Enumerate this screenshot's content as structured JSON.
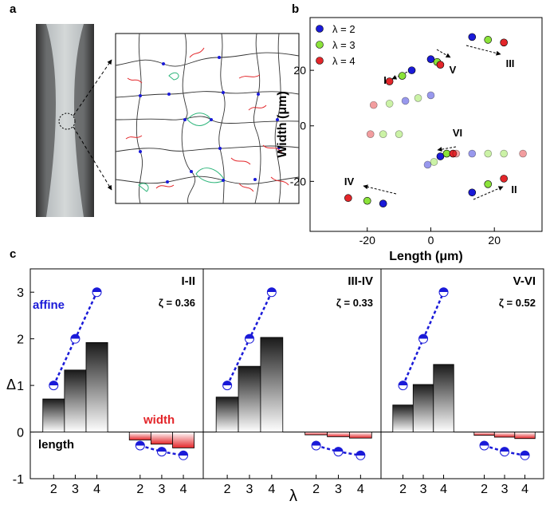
{
  "panel_labels": [
    "a",
    "b",
    "c"
  ],
  "chart_data": [
    {
      "type": "scatter",
      "xlabel": "Length (μm)",
      "ylabel": "Width (μm)",
      "xlim": [
        -38,
        35
      ],
      "ylim": [
        -38,
        39
      ],
      "xticks": [
        -20,
        0,
        20
      ],
      "yticks": [
        -20,
        0,
        20
      ],
      "legend": "upper left",
      "annotations": [
        "I",
        "II",
        "III",
        "IV",
        "V",
        "VI"
      ],
      "series": [
        {
          "name": "λ = 2",
          "color": "#1a1ad8",
          "x": [
            -6,
            0,
            13,
            -15,
            13,
            3,
            -8,
            0,
            13,
            -1
          ],
          "y": [
            20,
            24,
            32,
            -28,
            -24,
            -11,
            9,
            11,
            -10,
            -14
          ],
          "alpha": [
            1,
            1,
            1,
            1,
            1,
            1,
            0.45,
            0.45,
            0.45,
            0.45
          ]
        },
        {
          "name": "λ = 3",
          "color": "#8be33a",
          "x": [
            -9,
            2,
            18,
            -20,
            18,
            5,
            -13,
            -4,
            -15,
            -10,
            18,
            23,
            1
          ],
          "y": [
            18,
            23,
            31,
            -27,
            -21,
            -10,
            8,
            10,
            -3,
            -3,
            -10,
            -10,
            -13
          ],
          "alpha": [
            1,
            1,
            1,
            1,
            1,
            1,
            0.45,
            0.45,
            0.45,
            0.45,
            0.45,
            0.45,
            0.45
          ]
        },
        {
          "name": "λ = 4",
          "color": "#e3262a",
          "x": [
            -13,
            3,
            23,
            -26,
            23,
            7,
            -18,
            -19,
            8,
            29
          ],
          "y": [
            16,
            22,
            30,
            -26,
            -19,
            -10,
            7.5,
            -3,
            -10,
            -10
          ],
          "alpha": [
            1,
            1,
            1,
            1,
            1,
            1,
            0.45,
            0.45,
            0.45,
            0.45
          ]
        }
      ]
    },
    {
      "type": "bar",
      "title": "I-II",
      "annotation": "ζ = 0.36",
      "ylabel": "Δ",
      "xlabel": "λ",
      "categories": [
        "2",
        "3",
        "4",
        "2",
        "3",
        "4"
      ],
      "ylim": [
        -1,
        3.5
      ],
      "yticks": [
        -1,
        0,
        1,
        2,
        3
      ],
      "series": [
        {
          "name": "length",
          "color": "#1a1a1a",
          "values": [
            0.71,
            1.33,
            1.92,
            null,
            null,
            null
          ]
        },
        {
          "name": "width",
          "color": "#e3262a",
          "values": [
            null,
            null,
            null,
            -0.17,
            -0.26,
            -0.34
          ]
        },
        {
          "name": "affine",
          "color": "#1a1ad8",
          "values": [
            1,
            2,
            3,
            -0.29,
            -0.42,
            -0.5
          ]
        }
      ]
    },
    {
      "type": "bar",
      "title": "III-IV",
      "annotation": "ζ = 0.33",
      "categories": [
        "2",
        "3",
        "4",
        "2",
        "3",
        "4"
      ],
      "ylim": [
        -1,
        3.5
      ],
      "series": [
        {
          "color": "#1a1a1a",
          "values": [
            0.75,
            1.41,
            2.03,
            null,
            null,
            null
          ]
        },
        {
          "color": "#e3262a",
          "values": [
            null,
            null,
            null,
            -0.06,
            -0.1,
            -0.13
          ]
        },
        {
          "color": "#1a1ad8",
          "values": [
            1,
            2,
            3,
            -0.29,
            -0.42,
            -0.5
          ]
        }
      ]
    },
    {
      "type": "bar",
      "title": "V-VI",
      "annotation": "ζ = 0.52",
      "categories": [
        "2",
        "3",
        "4",
        "2",
        "3",
        "4"
      ],
      "ylim": [
        -1,
        3.5
      ],
      "series": [
        {
          "color": "#1a1a1a",
          "values": [
            0.58,
            1.02,
            1.45,
            null,
            null,
            null
          ]
        },
        {
          "color": "#e3262a",
          "values": [
            null,
            null,
            null,
            -0.07,
            -0.11,
            -0.14
          ]
        },
        {
          "color": "#1a1ad8",
          "values": [
            1,
            2,
            3,
            -0.29,
            -0.42,
            -0.5
          ]
        }
      ]
    }
  ]
}
